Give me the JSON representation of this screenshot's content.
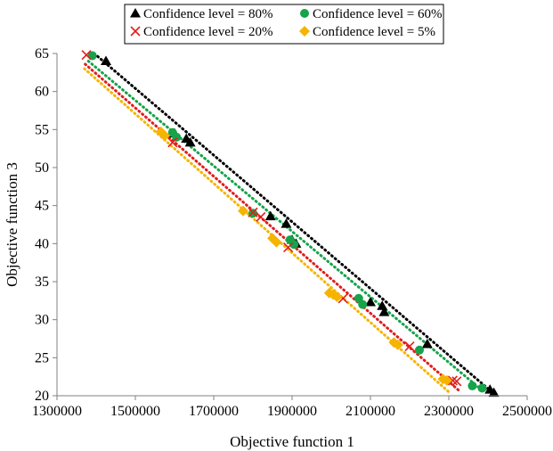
{
  "chart_data": {
    "type": "scatter",
    "title": "",
    "xlabel": "Objective function 1",
    "ylabel": "Objective function 3",
    "xlim": [
      1300000,
      2500000
    ],
    "ylim": [
      20,
      65
    ],
    "x_ticks": [
      1300000,
      1500000,
      1700000,
      1900000,
      2100000,
      2300000,
      2500000
    ],
    "y_ticks": [
      20,
      25,
      30,
      35,
      40,
      45,
      50,
      55,
      60,
      65
    ],
    "x_tick_labels": [
      "1300000",
      "1500000",
      "1700000",
      "1900000",
      "2100000",
      "2300000",
      "2500000"
    ],
    "y_tick_labels": [
      "20",
      "25",
      "30",
      "35",
      "40",
      "45",
      "50",
      "55",
      "60",
      "65"
    ],
    "grid": false,
    "legend_position": "top",
    "series": [
      {
        "name": "Confidence level = 80%",
        "marker": "triangle",
        "color": "#000000",
        "points": [
          [
            1425000,
            64.0
          ],
          [
            1600000,
            54.5
          ],
          [
            1630000,
            53.8
          ],
          [
            1640000,
            53.3
          ],
          [
            1845000,
            43.6
          ],
          [
            1885000,
            42.6
          ],
          [
            1900000,
            40.5
          ],
          [
            1910000,
            40.0
          ],
          [
            2100000,
            32.3
          ],
          [
            2130000,
            31.8
          ],
          [
            2135000,
            31.0
          ],
          [
            2245000,
            26.8
          ],
          [
            2405000,
            20.8
          ],
          [
            2415000,
            20.4
          ]
        ],
        "trend": [
          [
            1395000,
            65.0
          ],
          [
            2410000,
            20.5
          ]
        ]
      },
      {
        "name": "Confidence level = 60%",
        "marker": "circle",
        "color": "#16a34a",
        "points": [
          [
            1390000,
            64.7
          ],
          [
            1595000,
            54.6
          ],
          [
            1605000,
            54.0
          ],
          [
            1800000,
            44.0
          ],
          [
            1895000,
            40.5
          ],
          [
            1905000,
            39.9
          ],
          [
            2070000,
            32.8
          ],
          [
            2080000,
            32.0
          ],
          [
            2225000,
            26.0
          ],
          [
            2360000,
            21.3
          ],
          [
            2385000,
            21.0
          ]
        ],
        "trend": [
          [
            1380000,
            64.0
          ],
          [
            2390000,
            20.5
          ]
        ]
      },
      {
        "name": "Confidence level = 20%",
        "marker": "x",
        "color": "#e11d1d",
        "points": [
          [
            1375000,
            64.8
          ],
          [
            1595000,
            53.3
          ],
          [
            1800000,
            44.1
          ],
          [
            1820000,
            43.5
          ],
          [
            1890000,
            39.5
          ],
          [
            2030000,
            32.8
          ],
          [
            2200000,
            26.5
          ],
          [
            2310000,
            22.0
          ],
          [
            2320000,
            21.9
          ]
        ],
        "trend": [
          [
            1372000,
            63.6
          ],
          [
            2330000,
            20.5
          ]
        ]
      },
      {
        "name": "Confidence level = 5%",
        "marker": "diamond",
        "color": "#f5b400",
        "points": [
          [
            1565000,
            54.7
          ],
          [
            1575000,
            54.2
          ],
          [
            1775000,
            44.3
          ],
          [
            1850000,
            40.7
          ],
          [
            1860000,
            40.2
          ],
          [
            1995000,
            33.5
          ],
          [
            2005000,
            33.3
          ],
          [
            2015000,
            33.0
          ],
          [
            2160000,
            27.0
          ],
          [
            2170000,
            26.7
          ],
          [
            2285000,
            22.2
          ],
          [
            2295000,
            22.0
          ]
        ],
        "trend": [
          [
            1370000,
            63.0
          ],
          [
            2300000,
            20.5
          ]
        ]
      }
    ]
  }
}
